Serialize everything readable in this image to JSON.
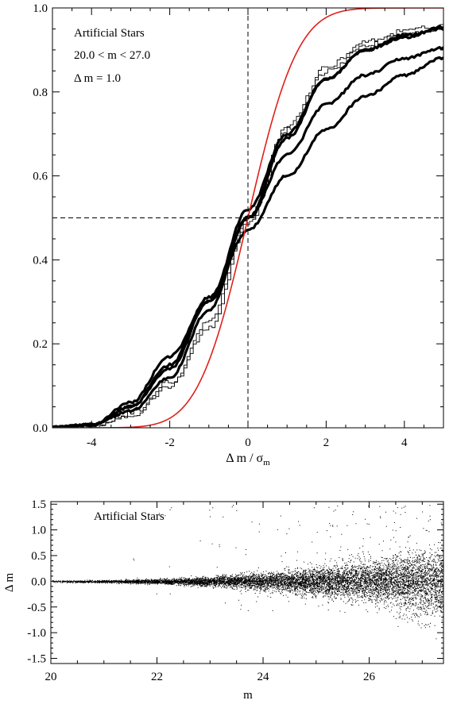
{
  "chart_data": [
    {
      "type": "line",
      "annotations": [
        "Artificial Stars",
        "20.0 < m < 27.0",
        "Δ m = 1.0"
      ],
      "xlabel": "Δ m / σ",
      "xlabel_subscript": "m",
      "ylabel": "",
      "xlim": [
        -5,
        5
      ],
      "ylim": [
        0,
        1
      ],
      "x_ticks": [
        -4,
        -2,
        0,
        2,
        4
      ],
      "y_ticks": [
        "0.0",
        "0.2",
        "0.4",
        "0.6",
        "0.8",
        "1.0"
      ],
      "reference_lines": {
        "x": 0,
        "y": 0.5
      },
      "gaussian_reference": {
        "color": "#e0201b",
        "mean": 0,
        "sigma": 1
      },
      "series": [
        {
          "style": "thick",
          "x": [
            -5,
            -4,
            -3,
            -2,
            -1,
            0,
            1,
            2,
            3,
            4,
            5
          ],
          "values": [
            0.001,
            0.007,
            0.05,
            0.14,
            0.3,
            0.52,
            0.7,
            0.83,
            0.9,
            0.93,
            0.955
          ]
        },
        {
          "style": "thick",
          "x": [
            -5,
            -4,
            -3,
            -2,
            -1,
            0,
            1,
            2,
            3,
            4,
            5
          ],
          "values": [
            0.001,
            0.006,
            0.04,
            0.12,
            0.28,
            0.5,
            0.69,
            0.83,
            0.9,
            0.935,
            0.95
          ]
        },
        {
          "style": "thick",
          "x": [
            -5,
            -4,
            -3,
            -2,
            -1,
            0,
            1,
            2,
            3,
            4,
            5
          ],
          "values": [
            0.001,
            0.006,
            0.05,
            0.15,
            0.31,
            0.5,
            0.65,
            0.77,
            0.84,
            0.88,
            0.905
          ]
        },
        {
          "style": "thick",
          "x": [
            -5,
            -4,
            -3,
            -2,
            -1,
            0,
            1,
            2,
            3,
            4,
            5
          ],
          "values": [
            0.001,
            0.007,
            0.06,
            0.17,
            0.3,
            0.47,
            0.6,
            0.71,
            0.79,
            0.84,
            0.88
          ]
        },
        {
          "style": "thin",
          "x": [
            -5,
            -4,
            -3,
            -2,
            -1,
            0,
            1,
            2,
            3,
            4,
            5
          ],
          "values": [
            0.0,
            0.005,
            0.03,
            0.1,
            0.26,
            0.5,
            0.72,
            0.86,
            0.92,
            0.945,
            0.96
          ]
        },
        {
          "style": "thin",
          "x": [
            -5,
            -4,
            -3,
            -2,
            -1,
            0,
            1,
            2,
            3,
            4,
            5
          ],
          "values": [
            0.0,
            0.004,
            0.035,
            0.11,
            0.24,
            0.49,
            0.71,
            0.85,
            0.91,
            0.94,
            0.95
          ]
        }
      ]
    },
    {
      "type": "scatter",
      "annotations": [
        "Artificial Stars"
      ],
      "xlabel": "m",
      "ylabel": "Δ m",
      "xlim": [
        20,
        27.4
      ],
      "ylim": [
        -1.6,
        1.55
      ],
      "x_ticks": [
        20,
        22,
        24,
        26
      ],
      "y_ticks": [
        "1.5",
        "1.0",
        "0.5",
        "0.0",
        "-0.5",
        "-1.0",
        "-1.5"
      ],
      "scatter_model": {
        "m_range": [
          20,
          27.4
        ],
        "spread_at_20": 0.01,
        "spread_at_27": 0.28,
        "outlier_fraction": 0.03
      }
    }
  ]
}
